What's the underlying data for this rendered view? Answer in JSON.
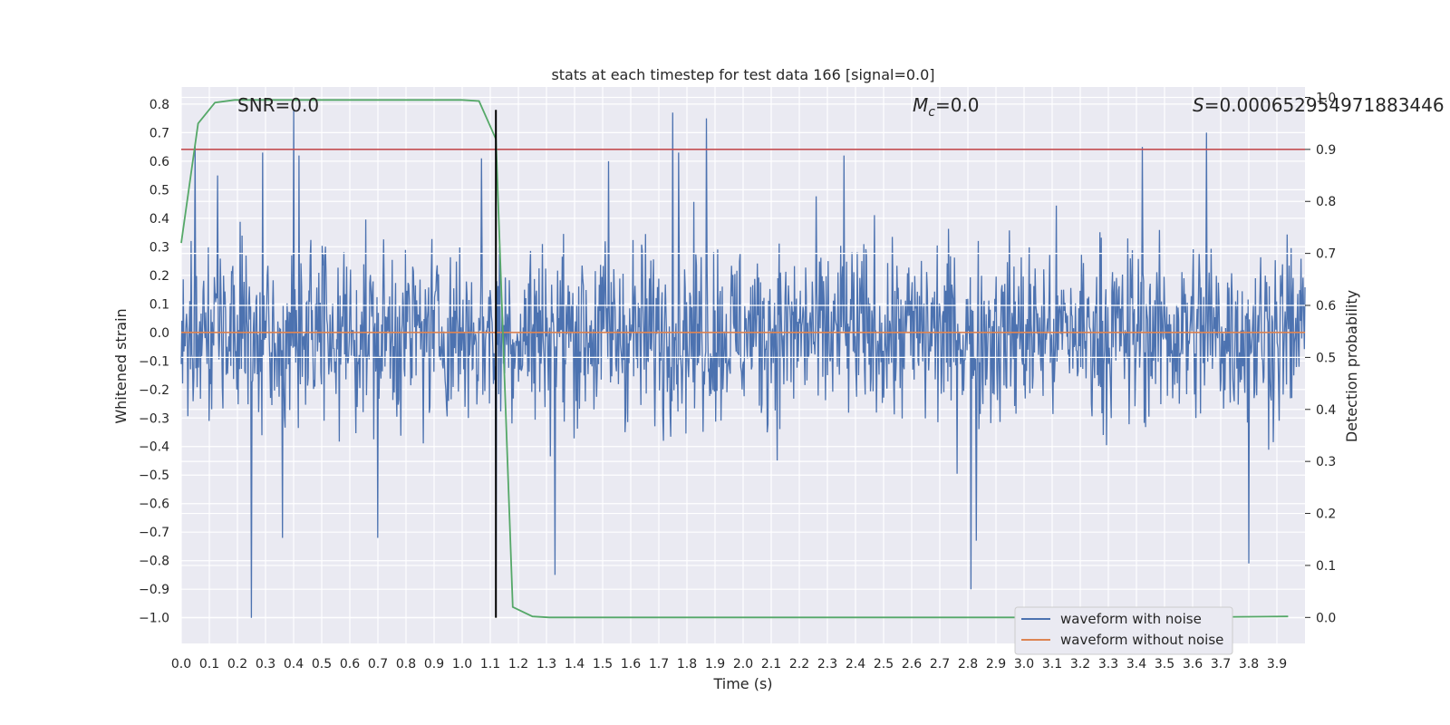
{
  "chart_data": {
    "type": "line",
    "title": "stats at each timestep for test data 166 [signal=0.0]",
    "xlabel": "Time (s)",
    "ylabel": "Whitened strain",
    "ylabel_right": "Detection probability",
    "xlim": [
      0.0,
      4.0
    ],
    "ylim": [
      -1.09,
      0.86
    ],
    "ylim_right": [
      -0.05,
      1.02
    ],
    "x_ticks": [
      "0.0",
      "0.1",
      "0.2",
      "0.3",
      "0.4",
      "0.5",
      "0.6",
      "0.7",
      "0.8",
      "0.9",
      "1.0",
      "1.1",
      "1.2",
      "1.3",
      "1.4",
      "1.5",
      "1.6",
      "1.7",
      "1.8",
      "1.9",
      "2.0",
      "2.1",
      "2.2",
      "2.3",
      "2.4",
      "2.5",
      "2.6",
      "2.7",
      "2.8",
      "2.9",
      "3.0",
      "3.1",
      "3.2",
      "3.3",
      "3.4",
      "3.5",
      "3.6",
      "3.7",
      "3.8",
      "3.9"
    ],
    "y_ticks_left": [
      "0.8",
      "0.7",
      "0.6",
      "0.5",
      "0.4",
      "0.3",
      "0.2",
      "0.1",
      "0.0",
      "−0.1",
      "−0.2",
      "−0.3",
      "−0.4",
      "−0.5",
      "−0.6",
      "−0.7",
      "−0.8",
      "−0.9",
      "−1.0"
    ],
    "y_ticks_right": [
      "1.0",
      "0.9",
      "0.8",
      "0.7",
      "0.6",
      "0.5",
      "0.4",
      "0.3",
      "0.2",
      "0.1",
      "0.0"
    ],
    "annotations": {
      "snr": "SNR=0.0",
      "mc_label": "M",
      "mc_sub": "c",
      "mc_value": "=0.0",
      "s_label": "S",
      "s_value": "=0.000652954971883446"
    },
    "series": [
      {
        "name": "waveform with noise",
        "color": "#4c72b0",
        "kind": "noise",
        "envelope_typical": [
          -0.45,
          0.45
        ],
        "spikes": [
          {
            "x": 0.05,
            "y": 0.66
          },
          {
            "x": 0.13,
            "y": 0.55
          },
          {
            "x": 0.25,
            "y": -1.0
          },
          {
            "x": 0.29,
            "y": 0.63
          },
          {
            "x": 0.36,
            "y": -0.72
          },
          {
            "x": 0.4,
            "y": 0.78
          },
          {
            "x": 0.42,
            "y": 0.62
          },
          {
            "x": 0.7,
            "y": -0.72
          },
          {
            "x": 1.07,
            "y": 0.61
          },
          {
            "x": 1.12,
            "y": -0.82
          },
          {
            "x": 1.33,
            "y": -0.85
          },
          {
            "x": 1.52,
            "y": 0.6
          },
          {
            "x": 1.75,
            "y": 0.77
          },
          {
            "x": 1.77,
            "y": 0.63
          },
          {
            "x": 1.87,
            "y": 0.75
          },
          {
            "x": 2.36,
            "y": 0.62
          },
          {
            "x": 2.81,
            "y": -0.9
          },
          {
            "x": 2.83,
            "y": -0.73
          },
          {
            "x": 3.42,
            "y": 0.65
          },
          {
            "x": 3.65,
            "y": 0.7
          },
          {
            "x": 3.8,
            "y": -0.81
          }
        ]
      },
      {
        "name": "waveform without noise",
        "color": "#dd8452",
        "x": [
          0.0,
          4.0
        ],
        "y": [
          0.0,
          0.0
        ]
      },
      {
        "name": "detection probability",
        "color": "#55a868",
        "axis": "right",
        "x": [
          0.0,
          0.06,
          0.12,
          0.19,
          0.25,
          0.31,
          0.5,
          0.75,
          1.0,
          1.06,
          1.12,
          1.18,
          1.25,
          1.31,
          1.5,
          2.0,
          2.5,
          3.0,
          3.5,
          3.94
        ],
        "y": [
          0.72,
          0.95,
          0.99,
          0.995,
          0.995,
          0.995,
          0.995,
          0.995,
          0.995,
          0.993,
          0.92,
          0.02,
          0.002,
          0.0,
          0.0,
          0.0,
          0.0,
          0.0,
          0.0,
          0.002
        ]
      }
    ],
    "hlines": [
      {
        "name": "threshold",
        "axis": "right",
        "value": 0.9,
        "color": "#c44e52"
      }
    ],
    "vlines": [
      {
        "name": "detection-marker",
        "x": 1.12,
        "y_range": [
          -1.0,
          0.78
        ],
        "color": "#000000"
      }
    ],
    "legend": {
      "placement": "lower-right",
      "entries": [
        {
          "label": "waveform with noise",
          "color": "#4c72b0"
        },
        {
          "label": "waveform without noise",
          "color": "#dd8452"
        }
      ]
    },
    "grid": true
  }
}
